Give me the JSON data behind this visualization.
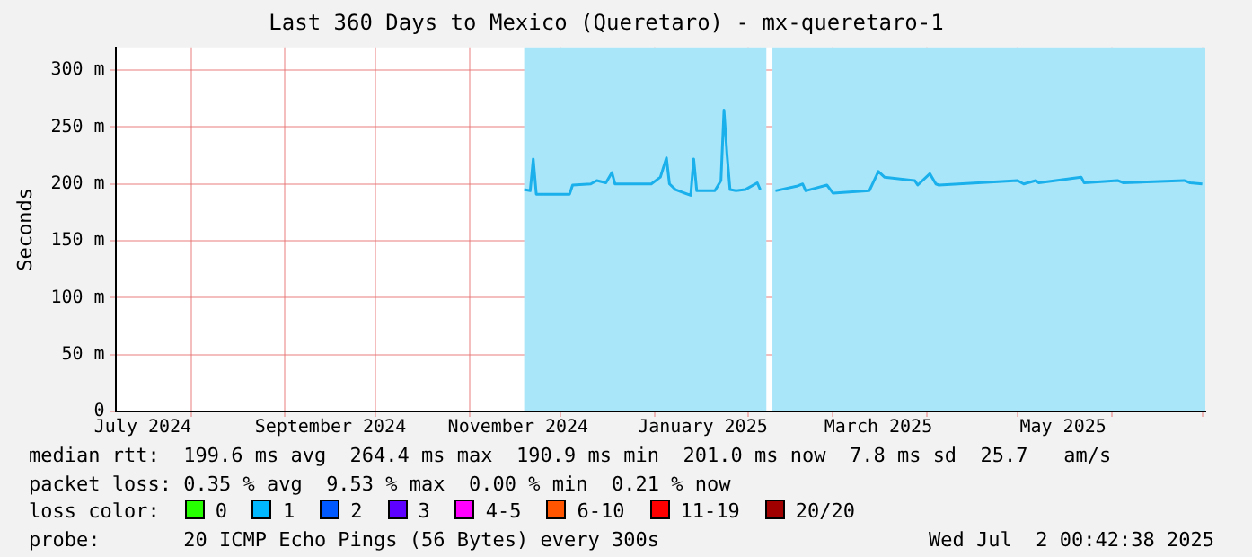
{
  "chart_data": {
    "type": "line",
    "title": "Last 360 Days to Mexico (Queretaro) - mx-queretaro-1",
    "ylabel": "Seconds",
    "x": [
      "2024-11-19",
      "2024-11-21",
      "2024-11-22",
      "2024-11-23",
      "2024-12-04",
      "2024-12-05",
      "2024-12-11",
      "2024-12-13",
      "2024-12-16",
      "2024-12-18",
      "2024-12-19",
      "2024-12-31",
      "2025-01-03",
      "2025-01-05",
      "2025-01-06",
      "2025-01-08",
      "2025-01-13",
      "2025-01-14",
      "2025-01-15",
      "2025-01-21",
      "2025-01-23",
      "2025-01-24",
      "2025-01-25",
      "2025-01-26",
      "2025-01-28",
      "2025-01-31",
      "2025-02-04",
      "2025-02-05",
      "2025-02-08",
      "2025-02-10",
      "2025-02-17",
      "2025-02-19",
      "2025-02-20",
      "2025-02-27",
      "2025-03-01",
      "2025-03-13",
      "2025-03-16",
      "2025-03-18",
      "2025-03-28",
      "2025-03-29",
      "2025-04-02",
      "2025-04-04",
      "2025-04-05",
      "2025-05-01",
      "2025-05-03",
      "2025-05-07",
      "2025-05-08",
      "2025-05-22",
      "2025-05-23",
      "2025-06-03",
      "2025-06-05",
      "2025-06-25",
      "2025-06-27",
      "2025-07-01"
    ],
    "series": [
      {
        "color": "#1ab0ec",
        "values": [
          195,
          194,
          222,
          191,
          191,
          199,
          200,
          203,
          201,
          210,
          200,
          200,
          206,
          223,
          200,
          195,
          190,
          222,
          194,
          194,
          203,
          265,
          226,
          195,
          194,
          195,
          201,
          195,
          null,
          194,
          198,
          200,
          194,
          199,
          192,
          194,
          211,
          206,
          203,
          199,
          209,
          200,
          199,
          203,
          200,
          203,
          201,
          206,
          201,
          203,
          201,
          203,
          201,
          200
        ]
      }
    ],
    "xlim": [
      "2024-07-07",
      "2025-07-02"
    ],
    "xticks": [
      {
        "value": "2024-07-16",
        "label": "July 2024"
      },
      {
        "value": "2024-08-01",
        "label": null
      },
      {
        "value": "2024-09-01",
        "label": null
      },
      {
        "value": "2024-09-16",
        "label": "September 2024"
      },
      {
        "value": "2024-10-01",
        "label": null
      },
      {
        "value": "2024-11-01",
        "label": null
      },
      {
        "value": "2024-11-17",
        "label": "November 2024"
      },
      {
        "value": "2024-12-01",
        "label": null
      },
      {
        "value": "2025-01-01",
        "label": null
      },
      {
        "value": "2025-01-17",
        "label": "January 2025"
      },
      {
        "value": "2025-02-01",
        "label": null
      },
      {
        "value": "2025-03-01",
        "label": null
      },
      {
        "value": "2025-03-16",
        "label": "March 2025"
      },
      {
        "value": "2025-04-01",
        "label": null
      },
      {
        "value": "2025-05-01",
        "label": null
      },
      {
        "value": "2025-05-16",
        "label": "May 2025"
      },
      {
        "value": "2025-06-01",
        "label": null
      },
      {
        "value": "2025-07-01",
        "label": null
      }
    ],
    "ylim": [
      0,
      320
    ],
    "yticks": [
      0,
      {
        "value": 50,
        "label": "50 m"
      },
      {
        "value": 100,
        "label": "100 m"
      },
      {
        "value": 150,
        "label": "150 m"
      },
      {
        "value": 200,
        "label": "200 m"
      },
      {
        "value": 250,
        "label": "250 m"
      },
      {
        "value": 300,
        "label": "300 m"
      }
    ],
    "bands": [
      {
        "axis": "x",
        "from": "2024-11-19",
        "to": "2025-02-07",
        "color": "#aae6fa"
      },
      {
        "axis": "x",
        "from": "2025-02-09",
        "to": "2025-07-02",
        "color": "#aae6fa"
      }
    ],
    "grid": true,
    "legend": false,
    "marker": "none",
    "line_style": "solid",
    "annotations": [
      "median rtt:  199.6 ms avg  264.4 ms max  190.9 ms min  201.0 ms now  7.8 ms sd  25.7   am/s",
      "packet loss: 0.35 % avg  9.53 % max  0.00 % min  0.21 % now",
      "loss color:",
      "0",
      "1",
      "2",
      "3",
      "4-5",
      "6-10",
      "11-19",
      "20/20",
      "probe:       20 ICMP Echo Pings (56 Bytes) every 300s",
      "Wed Jul  2 00:42:38 2025"
    ]
  }
}
